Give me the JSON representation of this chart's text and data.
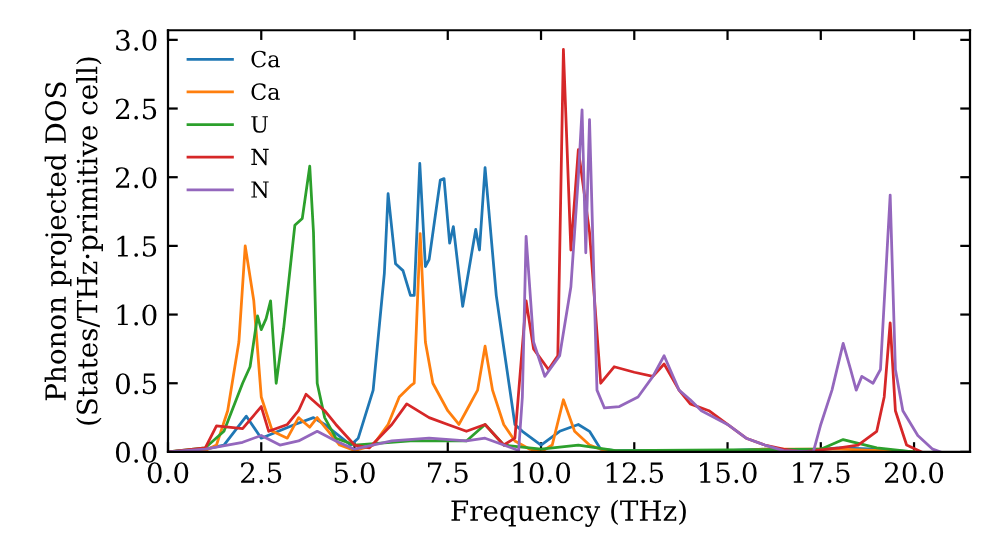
{
  "chart_data": {
    "type": "line",
    "xlabel": "Frequency (THz)",
    "ylabel": "Phonon projected DOS\n(States/THz·primitive cell)",
    "xlim": [
      0,
      21.5
    ],
    "ylim": [
      0,
      3.07
    ],
    "xticks": [
      {
        "value": 0,
        "label": "0.0"
      },
      {
        "value": 2.5,
        "label": "2.5"
      },
      {
        "value": 5,
        "label": "5.0"
      },
      {
        "value": 7.5,
        "label": "7.5"
      },
      {
        "value": 10,
        "label": "10.0"
      },
      {
        "value": 12.5,
        "label": "12.5"
      },
      {
        "value": 15,
        "label": "15.0"
      },
      {
        "value": 17.5,
        "label": "17.5"
      },
      {
        "value": 20,
        "label": "20.0"
      }
    ],
    "yticks": [
      {
        "value": 0,
        "label": "0.0"
      },
      {
        "value": 0.5,
        "label": "0.5"
      },
      {
        "value": 1,
        "label": "1.0"
      },
      {
        "value": 1.5,
        "label": "1.5"
      },
      {
        "value": 2,
        "label": "2.0"
      },
      {
        "value": 2.5,
        "label": "2.5"
      },
      {
        "value": 3,
        "label": "3.0"
      }
    ],
    "grid": false,
    "legend": "top left",
    "marker": "none",
    "line_style": "solid",
    "series": [
      {
        "name": "Ca",
        "color": "#1f77b4",
        "x": [
          0,
          1,
          1.5,
          2.1,
          2.5,
          3.4,
          3.9,
          4.2,
          4.9,
          5.1,
          5.5,
          5.8,
          5.9,
          6.1,
          6.3,
          6.5,
          6.6,
          6.75,
          6.9,
          7.0,
          7.3,
          7.4,
          7.55,
          7.65,
          7.9,
          8.25,
          8.35,
          8.5,
          8.8,
          9.0,
          9.3,
          9.5,
          10.0,
          10.5,
          11.0,
          11.3,
          11.6,
          12,
          13,
          15,
          16,
          17,
          18,
          19,
          20
        ],
        "values": [
          0,
          0.02,
          0.05,
          0.26,
          0.1,
          0.2,
          0.25,
          0.2,
          0.05,
          0.1,
          0.45,
          1.3,
          1.88,
          1.37,
          1.32,
          1.14,
          1.14,
          2.1,
          1.35,
          1.4,
          1.98,
          1.99,
          1.52,
          1.64,
          1.06,
          1.62,
          1.47,
          2.07,
          1.14,
          0.76,
          0.2,
          0.15,
          0.05,
          0.15,
          0.2,
          0.15,
          0.02,
          0.01,
          0.01,
          0.01,
          0.02,
          0.01,
          0.03,
          0.02,
          0
        ]
      },
      {
        "name": "Ca",
        "color": "#ff7f0e",
        "x": [
          0,
          1,
          1.3,
          1.6,
          1.9,
          2.07,
          2.3,
          2.5,
          2.8,
          3.2,
          3.5,
          3.8,
          4.0,
          4.3,
          4.6,
          5.0,
          5.5,
          5.9,
          6.2,
          6.5,
          6.6,
          6.76,
          6.9,
          7.1,
          7.5,
          7.8,
          8.0,
          8.3,
          8.5,
          8.7,
          9.0,
          9.3,
          9.7,
          10,
          10.3,
          10.6,
          10.9,
          11.3,
          11.7,
          12.5,
          15,
          16,
          18,
          20
        ],
        "values": [
          0,
          0.01,
          0.05,
          0.3,
          0.8,
          1.5,
          1.1,
          0.4,
          0.15,
          0.1,
          0.25,
          0.18,
          0.25,
          0.15,
          0.05,
          0.01,
          0.05,
          0.2,
          0.4,
          0.48,
          0.5,
          1.59,
          0.8,
          0.5,
          0.3,
          0.2,
          0.3,
          0.45,
          0.77,
          0.45,
          0.2,
          0.08,
          0.02,
          0,
          0.05,
          0.38,
          0.15,
          0.05,
          0.01,
          0,
          0,
          0.02,
          0.02,
          0
        ]
      },
      {
        "name": "U",
        "color": "#2ca02c",
        "x": [
          0,
          1,
          1.5,
          2.0,
          2.2,
          2.4,
          2.5,
          2.63,
          2.75,
          2.9,
          3.1,
          3.4,
          3.6,
          3.8,
          3.9,
          4.0,
          4.2,
          4.5,
          5.0,
          6.5,
          8.0,
          8.5,
          9.0,
          10.0,
          11.0,
          12.0,
          17.5,
          18.1,
          19.0,
          20.0
        ],
        "values": [
          0,
          0.03,
          0.15,
          0.5,
          0.62,
          0.99,
          0.89,
          0.97,
          1.1,
          0.5,
          0.9,
          1.65,
          1.7,
          2.08,
          1.6,
          0.5,
          0.25,
          0.1,
          0.05,
          0.08,
          0.08,
          0.2,
          0.05,
          0.02,
          0.05,
          0.01,
          0.02,
          0.09,
          0.03,
          0
        ]
      },
      {
        "name": "N",
        "color": "#d62728",
        "x": [
          0,
          1,
          1.3,
          2.0,
          2.5,
          2.7,
          3.2,
          3.5,
          3.7,
          4.2,
          4.5,
          5.0,
          5.4,
          6.0,
          6.4,
          7.0,
          7.5,
          8.0,
          8.5,
          9.0,
          9.3,
          9.6,
          9.8,
          10.2,
          10.45,
          10.6,
          10.8,
          11.0,
          11.3,
          11.6,
          11.96,
          12.5,
          13.0,
          13.3,
          13.7,
          14.0,
          14.5,
          15.0,
          15.5,
          16.0,
          16.5,
          17.0,
          18.0,
          18.5,
          19.0,
          19.2,
          19.36,
          19.5,
          19.8,
          20.2
        ],
        "values": [
          0,
          0.03,
          0.19,
          0.17,
          0.33,
          0.15,
          0.2,
          0.3,
          0.42,
          0.3,
          0.2,
          0.05,
          0.03,
          0.2,
          0.35,
          0.25,
          0.2,
          0.15,
          0.2,
          0.05,
          0.1,
          1.1,
          0.75,
          0.6,
          0.7,
          2.93,
          1.47,
          2.2,
          1.6,
          0.5,
          0.62,
          0.58,
          0.55,
          0.64,
          0.45,
          0.35,
          0.3,
          0.2,
          0.1,
          0.05,
          0.02,
          0,
          0.03,
          0.05,
          0.15,
          0.4,
          0.94,
          0.3,
          0.05,
          0
        ]
      },
      {
        "name": "N",
        "color": "#9467bd",
        "x": [
          0,
          1,
          2,
          2.5,
          3,
          3.5,
          4.0,
          4.5,
          5,
          6,
          7,
          8,
          8.5,
          9,
          9.4,
          9.5,
          9.6,
          9.8,
          10.1,
          10.5,
          10.8,
          11.0,
          11.1,
          11.2,
          11.3,
          11.5,
          11.7,
          12.1,
          12.6,
          13.0,
          13.3,
          13.7,
          14.0,
          14.3,
          15.0,
          15.5,
          16.0,
          16.5,
          17.3,
          17.5,
          17.8,
          18.1,
          18.3,
          18.45,
          18.6,
          18.9,
          19.1,
          19.36,
          19.5,
          19.7,
          20.1,
          20.5,
          20.7
        ],
        "values": [
          0,
          0.02,
          0.07,
          0.12,
          0.05,
          0.08,
          0.15,
          0.08,
          0.02,
          0.08,
          0.1,
          0.08,
          0.1,
          0.05,
          0.01,
          0.4,
          1.57,
          0.8,
          0.55,
          0.7,
          1.2,
          2.0,
          2.49,
          1.45,
          2.42,
          0.45,
          0.32,
          0.33,
          0.4,
          0.55,
          0.7,
          0.45,
          0.38,
          0.3,
          0.2,
          0.1,
          0.05,
          0.01,
          0,
          0.2,
          0.45,
          0.79,
          0.6,
          0.45,
          0.55,
          0.5,
          0.6,
          1.87,
          0.6,
          0.3,
          0.12,
          0.02,
          0
        ]
      }
    ]
  }
}
